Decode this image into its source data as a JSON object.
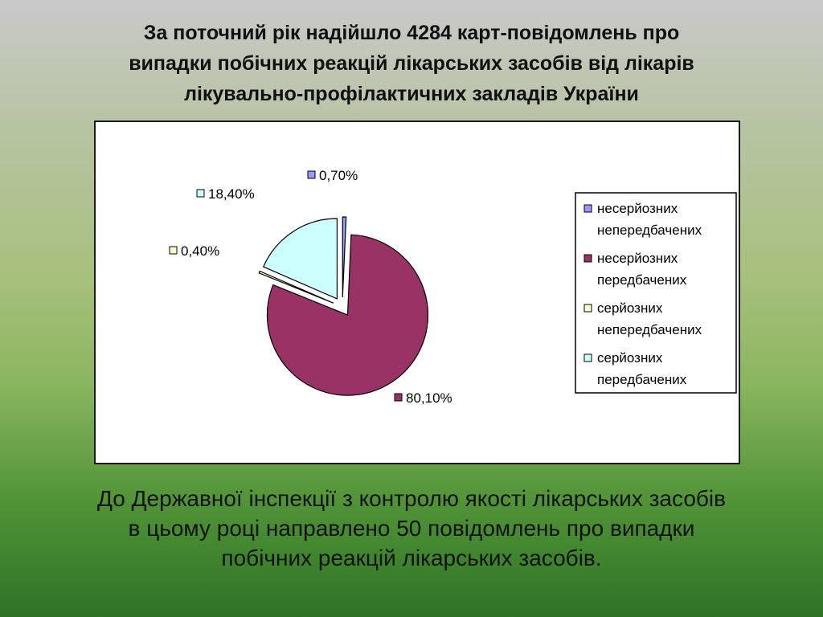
{
  "slide": {
    "title_lines": [
      "За поточний рік надійшло 4284 карт-повідомлень про",
      "випадки побічних реакцій лікарських засобів від лікарів",
      "лікувально-профілактичних закладів України"
    ],
    "footer_lines": [
      "До Державної інспекції з контролю якості лікарських засобів",
      "в цьому році направлено 50 повідомлень про випадки",
      "побічних реакцій лікарських засобів."
    ]
  },
  "chart_data": {
    "type": "pie",
    "title": "",
    "slices": [
      {
        "legend_lines": [
          "несерйозних",
          "непередбачених"
        ],
        "value": 0.7,
        "label": "0,70%",
        "color": "#9999ff"
      },
      {
        "legend_lines": [
          "несерйозних",
          "передбачених"
        ],
        "value": 80.1,
        "label": "80,10%",
        "color": "#993366"
      },
      {
        "legend_lines": [
          "серйозних",
          "непередбачених"
        ],
        "value": 0.4,
        "label": "0,40%",
        "color": "#ffffcc"
      },
      {
        "legend_lines": [
          "серйозних",
          "передбачених"
        ],
        "value": 18.4,
        "label": "18,40%",
        "color": "#ccffff"
      }
    ],
    "legend_position": "right",
    "exploded": true
  }
}
